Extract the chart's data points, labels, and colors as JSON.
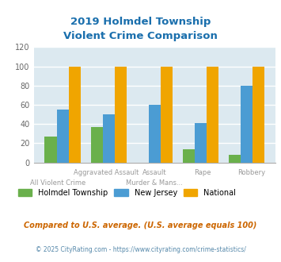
{
  "title": "2019 Holmdel Township\nViolent Crime Comparison",
  "holmdel": [
    27,
    37,
    0,
    14,
    8
  ],
  "new_jersey": [
    55,
    50,
    60,
    41,
    80
  ],
  "national": [
    100,
    100,
    100,
    100,
    100
  ],
  "colors": {
    "holmdel": "#6ab04c",
    "new_jersey": "#4b9cd3",
    "national": "#f0a500"
  },
  "ylim": [
    0,
    120
  ],
  "yticks": [
    0,
    20,
    40,
    60,
    80,
    100,
    120
  ],
  "background_color": "#dce9f0",
  "grid_color": "#ffffff",
  "title_color": "#1a6fad",
  "footnote1": "Compared to U.S. average. (U.S. average equals 100)",
  "footnote2": "© 2025 CityRating.com - https://www.cityrating.com/crime-statistics/",
  "legend_labels": [
    "Holmdel Township",
    "New Jersey",
    "National"
  ],
  "xtick_row1": [
    "",
    "Aggravated Assault",
    "Assault",
    "Rape",
    "Robbery"
  ],
  "xtick_row2": [
    "All Violent Crime",
    "",
    "Murder & Mans...",
    "",
    ""
  ]
}
